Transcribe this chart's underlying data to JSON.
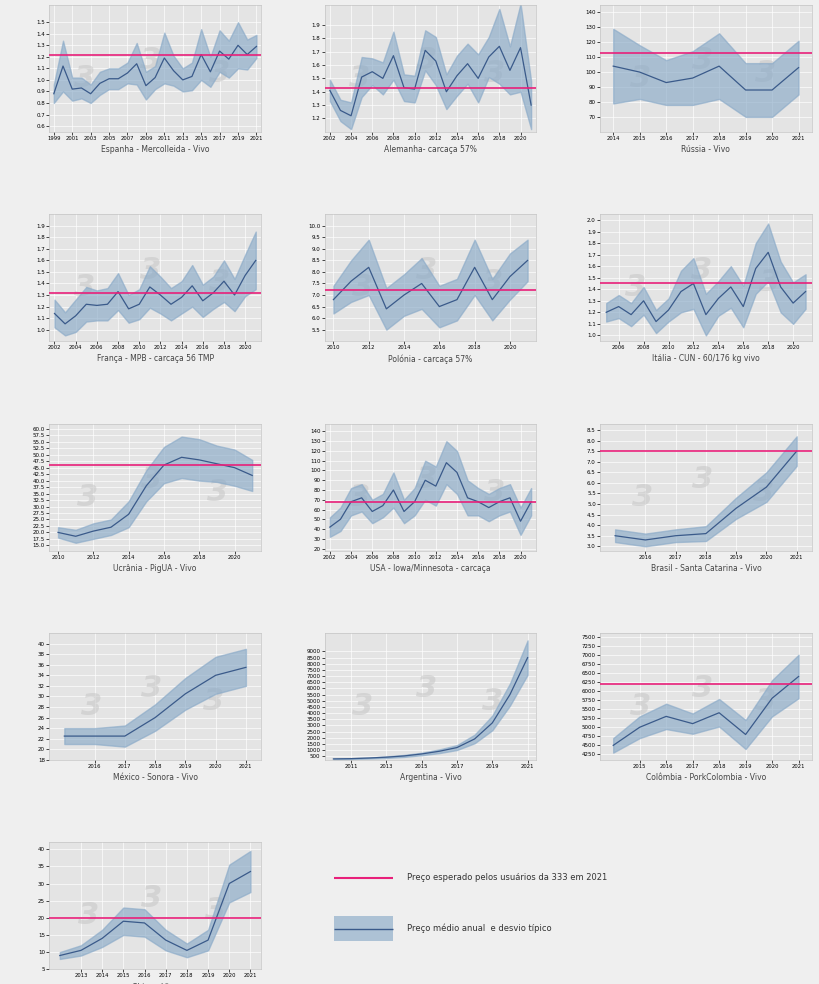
{
  "background_color": "#efefef",
  "plot_bg_color": "#e4e4e4",
  "line_color": "#3a5a8a",
  "band_color": "#8aaac8",
  "pink_color": "#e8207a",
  "watermark_color": "#c8c8c8",
  "panels": [
    {
      "title": "Espanha - Mercolleida - Vivo",
      "xlabel_years": [
        1999,
        2001,
        2003,
        2005,
        2007,
        2009,
        2011,
        2013,
        2015,
        2017,
        2019,
        2021
      ],
      "years": [
        1999,
        2000,
        2001,
        2002,
        2003,
        2004,
        2005,
        2006,
        2007,
        2008,
        2009,
        2010,
        2011,
        2012,
        2013,
        2014,
        2015,
        2016,
        2017,
        2018,
        2019,
        2020,
        2021
      ],
      "mean": [
        0.88,
        1.12,
        0.92,
        0.93,
        0.88,
        0.97,
        1.01,
        1.01,
        1.06,
        1.14,
        0.95,
        1.02,
        1.19,
        1.08,
        1.0,
        1.03,
        1.22,
        1.07,
        1.25,
        1.18,
        1.3,
        1.22,
        1.29
      ],
      "std": [
        0.08,
        0.22,
        0.1,
        0.09,
        0.08,
        0.1,
        0.09,
        0.09,
        0.09,
        0.18,
        0.12,
        0.1,
        0.22,
        0.13,
        0.1,
        0.12,
        0.22,
        0.13,
        0.18,
        0.16,
        0.2,
        0.13,
        0.1
      ],
      "pink_value": 1.22,
      "ylim": [
        0.55,
        1.65
      ],
      "yticks": [
        0.6,
        0.7,
        0.8,
        0.9,
        1.0,
        1.1,
        1.2,
        1.3,
        1.4,
        1.5
      ]
    },
    {
      "title": "Alemanha- carcaça 57%",
      "xlabel_years": [
        2002,
        2004,
        2006,
        2008,
        2010,
        2012,
        2014,
        2016,
        2018,
        2020
      ],
      "years": [
        2002,
        2003,
        2004,
        2005,
        2006,
        2007,
        2008,
        2009,
        2010,
        2011,
        2012,
        2013,
        2014,
        2015,
        2016,
        2017,
        2018,
        2019,
        2020,
        2021
      ],
      "mean": [
        1.41,
        1.26,
        1.22,
        1.51,
        1.55,
        1.5,
        1.67,
        1.43,
        1.42,
        1.71,
        1.63,
        1.4,
        1.52,
        1.61,
        1.5,
        1.66,
        1.74,
        1.56,
        1.73,
        1.3
      ],
      "std": [
        0.08,
        0.08,
        0.1,
        0.15,
        0.1,
        0.12,
        0.18,
        0.1,
        0.1,
        0.15,
        0.18,
        0.13,
        0.15,
        0.15,
        0.18,
        0.15,
        0.28,
        0.18,
        0.33,
        0.18
      ],
      "pink_value": 1.43,
      "ylim": [
        1.1,
        2.05
      ],
      "yticks": [
        1.2,
        1.3,
        1.4,
        1.5,
        1.6,
        1.7,
        1.8,
        1.9
      ]
    },
    {
      "title": "Rússia - Vivo",
      "xlabel_years": [
        2014,
        2015,
        2016,
        2017,
        2018,
        2019,
        2020,
        2021
      ],
      "years": [
        2014,
        2015,
        2016,
        2017,
        2018,
        2019,
        2020,
        2021
      ],
      "mean": [
        104,
        100,
        93,
        96,
        104,
        88,
        88,
        103
      ],
      "std": [
        25,
        18,
        15,
        18,
        22,
        18,
        18,
        18
      ],
      "pink_value": 113,
      "ylim": [
        60,
        145
      ],
      "yticks": [
        70,
        80,
        90,
        100,
        110,
        120,
        130,
        140
      ]
    },
    {
      "title": "França - MPB - carcaça 56 TMP",
      "xlabel_years": [
        2002,
        2004,
        2006,
        2008,
        2010,
        2012,
        2014,
        2016,
        2018,
        2020
      ],
      "years": [
        2002,
        2003,
        2004,
        2005,
        2006,
        2007,
        2008,
        2009,
        2010,
        2011,
        2012,
        2013,
        2014,
        2015,
        2016,
        2017,
        2018,
        2019,
        2020,
        2021
      ],
      "mean": [
        1.14,
        1.05,
        1.12,
        1.22,
        1.21,
        1.22,
        1.33,
        1.18,
        1.22,
        1.37,
        1.3,
        1.22,
        1.28,
        1.38,
        1.25,
        1.32,
        1.42,
        1.3,
        1.47,
        1.6
      ],
      "std": [
        0.12,
        0.1,
        0.14,
        0.15,
        0.13,
        0.14,
        0.16,
        0.12,
        0.13,
        0.18,
        0.16,
        0.14,
        0.14,
        0.18,
        0.14,
        0.14,
        0.18,
        0.14,
        0.18,
        0.25
      ],
      "pink_value": 1.32,
      "ylim": [
        0.9,
        2.0
      ],
      "yticks": [
        1.0,
        1.1,
        1.2,
        1.3,
        1.4,
        1.5,
        1.6,
        1.7,
        1.8,
        1.9
      ]
    },
    {
      "title": "Polónia - carcaça 57%",
      "xlabel_years": [
        2010,
        2012,
        2014,
        2016,
        2018,
        2020
      ],
      "years": [
        2010,
        2011,
        2012,
        2013,
        2014,
        2015,
        2016,
        2017,
        2018,
        2019,
        2020,
        2021
      ],
      "mean": [
        6.8,
        7.6,
        8.2,
        6.4,
        7.0,
        7.5,
        6.5,
        6.8,
        8.2,
        6.8,
        7.8,
        8.5
      ],
      "std": [
        0.6,
        0.9,
        1.2,
        0.9,
        0.9,
        1.1,
        0.9,
        0.9,
        1.2,
        0.9,
        1.0,
        0.9
      ],
      "pink_value": 7.2,
      "ylim": [
        5.0,
        10.5
      ],
      "yticks": [
        5.5,
        6.0,
        6.5,
        7.0,
        7.5,
        8.0,
        8.5,
        9.0,
        9.5,
        10.0
      ]
    },
    {
      "title": "Itália - CUN - 60/176 kg vivo",
      "xlabel_years": [
        2006,
        2008,
        2010,
        2012,
        2014,
        2016,
        2018,
        2020
      ],
      "years": [
        2005,
        2006,
        2007,
        2008,
        2009,
        2010,
        2011,
        2012,
        2013,
        2014,
        2015,
        2016,
        2017,
        2018,
        2019,
        2020,
        2021
      ],
      "mean": [
        1.2,
        1.25,
        1.18,
        1.3,
        1.12,
        1.22,
        1.38,
        1.45,
        1.18,
        1.32,
        1.42,
        1.25,
        1.58,
        1.72,
        1.42,
        1.28,
        1.38
      ],
      "std": [
        0.08,
        0.1,
        0.1,
        0.12,
        0.1,
        0.1,
        0.18,
        0.22,
        0.18,
        0.15,
        0.18,
        0.18,
        0.22,
        0.25,
        0.22,
        0.18,
        0.15
      ],
      "pink_value": 1.45,
      "ylim": [
        0.95,
        2.05
      ],
      "yticks": [
        1.0,
        1.1,
        1.2,
        1.3,
        1.4,
        1.5,
        1.6,
        1.7,
        1.8,
        1.9,
        2.0
      ]
    },
    {
      "title": "Ucrânia - PigUA - Vivo",
      "xlabel_years": [
        2010,
        2012,
        2014,
        2016,
        2018,
        2020
      ],
      "years": [
        2010,
        2011,
        2012,
        2013,
        2014,
        2015,
        2016,
        2017,
        2018,
        2019,
        2020,
        2021
      ],
      "mean": [
        20.0,
        18.5,
        20.5,
        22.0,
        27.0,
        38.0,
        46.0,
        49.0,
        48.0,
        46.5,
        45.0,
        42.0
      ],
      "std": [
        2.0,
        2.5,
        3.0,
        3.0,
        5.0,
        6.0,
        7.0,
        8.0,
        8.0,
        7.0,
        7.0,
        6.0
      ],
      "pink_value": 46.0,
      "ylim": [
        13.0,
        62.0
      ],
      "yticks": [
        15,
        17.5,
        20,
        22.5,
        25,
        27.5,
        30,
        32.5,
        35,
        37.5,
        40,
        42.5,
        45,
        47.5,
        50,
        52.5,
        55,
        57.5,
        60
      ]
    },
    {
      "title": "USA - Iowa/Minnesota - carcaça",
      "xlabel_years": [
        2002,
        2004,
        2006,
        2008,
        2010,
        2012,
        2014,
        2016,
        2018,
        2020
      ],
      "years": [
        2002,
        2003,
        2004,
        2005,
        2006,
        2007,
        2008,
        2009,
        2010,
        2011,
        2012,
        2013,
        2014,
        2015,
        2016,
        2017,
        2018,
        2019,
        2020,
        2021
      ],
      "mean": [
        42,
        50,
        68,
        72,
        58,
        64,
        80,
        58,
        68,
        90,
        84,
        108,
        98,
        72,
        68,
        62,
        68,
        72,
        48,
        68
      ],
      "std": [
        10,
        12,
        14,
        14,
        12,
        12,
        18,
        12,
        14,
        20,
        20,
        22,
        22,
        18,
        14,
        14,
        14,
        14,
        14,
        14
      ],
      "pink_value": 68,
      "ylim": [
        18,
        148
      ],
      "yticks": [
        20,
        30,
        40,
        50,
        60,
        70,
        80,
        90,
        100,
        110,
        120,
        130,
        140
      ]
    },
    {
      "title": "Brasil - Santa Catarina - Vivo",
      "xlabel_years": [
        2016,
        2017,
        2018,
        2019,
        2020,
        2021
      ],
      "years": [
        2015,
        2016,
        2017,
        2018,
        2019,
        2020,
        2021
      ],
      "mean": [
        3.5,
        3.3,
        3.5,
        3.6,
        4.8,
        5.8,
        7.5
      ],
      "std": [
        0.3,
        0.3,
        0.3,
        0.35,
        0.5,
        0.7,
        0.7
      ],
      "pink_value": 7.5,
      "ylim": [
        2.8,
        8.8
      ],
      "yticks": [
        3.0,
        3.5,
        4.0,
        4.5,
        5.0,
        5.5,
        6.0,
        6.5,
        7.0,
        7.5,
        8.0,
        8.5
      ]
    },
    {
      "title": "México - Sonora - Vivo",
      "xlabel_years": [
        2016,
        2017,
        2018,
        2019,
        2020,
        2021
      ],
      "years": [
        2015,
        2016,
        2017,
        2018,
        2019,
        2020,
        2021
      ],
      "mean": [
        22.5,
        22.5,
        22.5,
        26.0,
        30.5,
        34.0,
        35.5
      ],
      "std": [
        1.5,
        1.5,
        2.0,
        2.5,
        3.0,
        3.5,
        3.5
      ],
      "pink_value": null,
      "ylim": [
        18,
        42
      ],
      "yticks": [
        18,
        20,
        22,
        24,
        26,
        28,
        30,
        32,
        34,
        36,
        38,
        40
      ]
    },
    {
      "title": "Argentina - Vivo",
      "xlabel_years": [
        2011,
        2013,
        2015,
        2017,
        2019,
        2021
      ],
      "years": [
        2010,
        2011,
        2012,
        2013,
        2014,
        2015,
        2016,
        2017,
        2018,
        2019,
        2020,
        2021
      ],
      "mean": [
        280,
        300,
        350,
        420,
        520,
        680,
        900,
        1200,
        1900,
        3200,
        5500,
        8500
      ],
      "std": [
        20,
        30,
        40,
        60,
        80,
        100,
        150,
        200,
        350,
        600,
        900,
        1400
      ],
      "pink_value": null,
      "ylim": [
        200,
        10500
      ],
      "yticks": [
        500,
        1000,
        1500,
        2000,
        2500,
        3000,
        3500,
        4000,
        4500,
        5000,
        5500,
        6000,
        6500,
        7000,
        7500,
        8000,
        8500,
        9000
      ]
    },
    {
      "title": "Colômbia - PorkColombia - Vivo",
      "xlabel_years": [
        2015,
        2016,
        2017,
        2018,
        2019,
        2020,
        2021
      ],
      "years": [
        2014,
        2015,
        2016,
        2017,
        2018,
        2019,
        2020,
        2021
      ],
      "mean": [
        4500,
        5000,
        5300,
        5100,
        5400,
        4800,
        5800,
        6400
      ],
      "std": [
        200,
        300,
        350,
        280,
        380,
        400,
        500,
        600
      ],
      "pink_value": 6200,
      "ylim": [
        4100,
        7600
      ],
      "yticks": [
        4250,
        4500,
        4750,
        5000,
        5250,
        5500,
        5750,
        6000,
        6250,
        6500,
        6750,
        7000,
        7250,
        7500
      ]
    },
    {
      "title": "China - Vivo",
      "xlabel_years": [
        2013,
        2014,
        2015,
        2016,
        2017,
        2018,
        2019,
        2020,
        2021
      ],
      "years": [
        2012,
        2013,
        2014,
        2015,
        2016,
        2017,
        2018,
        2019,
        2020,
        2021
      ],
      "mean": [
        9.0,
        10.5,
        14.0,
        19.0,
        18.5,
        13.5,
        10.5,
        13.5,
        30.0,
        33.5
      ],
      "std": [
        1.0,
        1.5,
        2.5,
        4.0,
        4.0,
        3.0,
        2.0,
        3.0,
        5.5,
        6.0
      ],
      "pink_value": 20.0,
      "ylim": [
        5,
        42
      ],
      "yticks": [
        5,
        10,
        15,
        20,
        25,
        30,
        35,
        40
      ]
    }
  ],
  "legend_pink_label": "Preço esperado pelos usuários da 333 em 2021",
  "legend_blue_label": "Preço médio anual  e desvio típico"
}
